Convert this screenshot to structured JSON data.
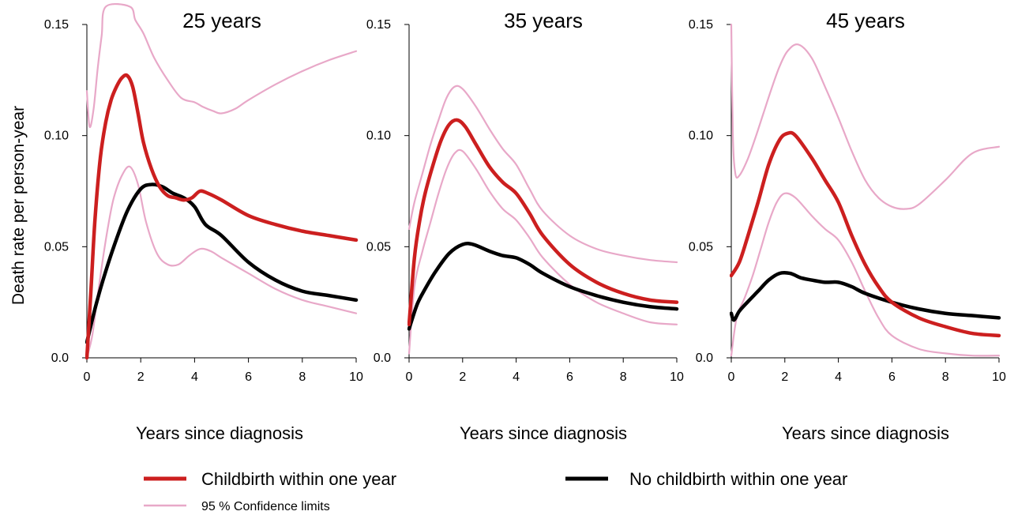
{
  "colors": {
    "childbirth": "#cc1f1f",
    "no_childbirth": "#000000",
    "confidence": "#e8a8c8"
  },
  "chart_data": [
    {
      "type": "line",
      "title": "25 years",
      "xlabel": "Years since diagnosis",
      "ylabel": "Death rate per person-year",
      "xlim": [
        0,
        10
      ],
      "ylim": [
        0,
        0.15
      ],
      "xticks": [
        0,
        2,
        4,
        6,
        8,
        10
      ],
      "yticks": [
        0.0,
        0.05,
        0.1,
        0.15
      ],
      "ytick_labels": [
        "0.0",
        "0.05",
        "0.10",
        "0.15"
      ],
      "series": [
        {
          "name": "Childbirth within one year",
          "role": "childbirth",
          "x": [
            0,
            0.15,
            0.3,
            0.5,
            0.7,
            0.9,
            1.1,
            1.3,
            1.5,
            1.7,
            1.9,
            2.1,
            2.4,
            2.7,
            3.0,
            3.3,
            3.6,
            3.9,
            4.2,
            4.5,
            5,
            6,
            7,
            8,
            9,
            10
          ],
          "y": [
            0.0,
            0.03,
            0.062,
            0.09,
            0.106,
            0.116,
            0.122,
            0.126,
            0.127,
            0.122,
            0.11,
            0.097,
            0.085,
            0.077,
            0.073,
            0.072,
            0.071,
            0.072,
            0.075,
            0.074,
            0.071,
            0.064,
            0.06,
            0.057,
            0.055,
            0.053
          ]
        },
        {
          "name": "No childbirth within one year",
          "role": "no_childbirth",
          "x": [
            0,
            0.3,
            0.6,
            1.0,
            1.5,
            2.0,
            2.4,
            2.8,
            3.2,
            3.6,
            4.0,
            4.4,
            5,
            6,
            7,
            8,
            9,
            10
          ],
          "y": [
            0.007,
            0.022,
            0.035,
            0.05,
            0.066,
            0.076,
            0.078,
            0.077,
            0.074,
            0.072,
            0.068,
            0.06,
            0.055,
            0.043,
            0.035,
            0.03,
            0.028,
            0.026
          ]
        },
        {
          "name": "95 % Confidence limits",
          "role": "ci_lower",
          "x": [
            0,
            0.2,
            0.4,
            0.6,
            0.8,
            1.0,
            1.3,
            1.6,
            1.9,
            2.2,
            2.6,
            3.0,
            3.4,
            3.8,
            4.2,
            4.6,
            5,
            6,
            7,
            8,
            9,
            10
          ],
          "y": [
            0.0,
            0.01,
            0.028,
            0.045,
            0.06,
            0.072,
            0.082,
            0.086,
            0.078,
            0.061,
            0.047,
            0.042,
            0.042,
            0.046,
            0.049,
            0.048,
            0.045,
            0.038,
            0.031,
            0.026,
            0.023,
            0.02
          ]
        },
        {
          "name": "95 % Confidence limits",
          "role": "ci_upper",
          "x": [
            0,
            0.1,
            0.25,
            0.4,
            0.55,
            0.7,
            1.6,
            1.8,
            2.1,
            2.5,
            3.0,
            3.5,
            4.0,
            4.3,
            4.7,
            5.0,
            5.5,
            6,
            7,
            8,
            9,
            10
          ],
          "y": [
            0.12,
            0.104,
            0.112,
            0.13,
            0.145,
            0.158,
            0.158,
            0.152,
            0.146,
            0.135,
            0.125,
            0.117,
            0.115,
            0.113,
            0.111,
            0.11,
            0.112,
            0.116,
            0.123,
            0.129,
            0.134,
            0.138
          ]
        }
      ]
    },
    {
      "type": "line",
      "title": "35 years",
      "xlabel": "Years since diagnosis",
      "xlim": [
        0,
        10
      ],
      "ylim": [
        0,
        0.15
      ],
      "xticks": [
        0,
        2,
        4,
        6,
        8,
        10
      ],
      "yticks": [
        0.0,
        0.05,
        0.1,
        0.15
      ],
      "ytick_labels": [
        "0.0",
        "0.05",
        "0.10",
        "0.15"
      ],
      "series": [
        {
          "name": "Childbirth within one year",
          "role": "childbirth",
          "x": [
            0,
            0.2,
            0.4,
            0.6,
            0.9,
            1.2,
            1.5,
            1.8,
            2.1,
            2.5,
            3.0,
            3.5,
            4.0,
            4.5,
            5,
            6,
            7,
            8,
            9,
            10
          ],
          "y": [
            0.015,
            0.045,
            0.062,
            0.074,
            0.087,
            0.098,
            0.105,
            0.107,
            0.104,
            0.096,
            0.086,
            0.079,
            0.074,
            0.065,
            0.055,
            0.042,
            0.034,
            0.029,
            0.026,
            0.025
          ]
        },
        {
          "name": "No childbirth within one year",
          "role": "no_childbirth",
          "x": [
            0,
            0.3,
            0.6,
            1.0,
            1.5,
            2.0,
            2.4,
            3.0,
            3.5,
            4.0,
            4.5,
            5,
            6,
            7,
            8,
            9,
            10
          ],
          "y": [
            0.013,
            0.024,
            0.031,
            0.039,
            0.047,
            0.051,
            0.051,
            0.048,
            0.046,
            0.045,
            0.042,
            0.038,
            0.032,
            0.028,
            0.025,
            0.023,
            0.022
          ]
        },
        {
          "name": "95 % Confidence limits",
          "role": "ci_lower",
          "x": [
            0,
            0.2,
            0.5,
            0.8,
            1.1,
            1.4,
            1.7,
            2.0,
            2.5,
            3.0,
            3.5,
            4.0,
            4.5,
            5,
            6,
            7,
            8,
            9,
            10
          ],
          "y": [
            0.002,
            0.032,
            0.048,
            0.061,
            0.074,
            0.085,
            0.092,
            0.093,
            0.085,
            0.075,
            0.067,
            0.062,
            0.054,
            0.045,
            0.033,
            0.025,
            0.02,
            0.016,
            0.015
          ]
        },
        {
          "name": "95 % Confidence limits",
          "role": "ci_upper",
          "x": [
            0,
            0.2,
            0.5,
            0.8,
            1.1,
            1.4,
            1.7,
            2.0,
            2.5,
            3.0,
            3.5,
            4.0,
            4.5,
            5,
            6,
            7,
            8,
            9,
            10
          ],
          "y": [
            0.058,
            0.07,
            0.083,
            0.096,
            0.107,
            0.117,
            0.122,
            0.121,
            0.113,
            0.103,
            0.094,
            0.087,
            0.076,
            0.066,
            0.055,
            0.049,
            0.046,
            0.044,
            0.043
          ]
        }
      ]
    },
    {
      "type": "line",
      "title": "45 years",
      "xlabel": "Years since diagnosis",
      "xlim": [
        0,
        10
      ],
      "ylim": [
        0,
        0.15
      ],
      "xticks": [
        0,
        2,
        4,
        6,
        8,
        10
      ],
      "yticks": [
        0.0,
        0.05,
        0.1,
        0.15
      ],
      "ytick_labels": [
        "0.0",
        "0.05",
        "0.10",
        "0.15"
      ],
      "series": [
        {
          "name": "Childbirth within one year",
          "role": "childbirth",
          "x": [
            0,
            0.3,
            0.6,
            1.0,
            1.4,
            1.8,
            2.1,
            2.4,
            3.0,
            3.5,
            4.0,
            4.5,
            5,
            5.5,
            6,
            7,
            8,
            9,
            10
          ],
          "y": [
            0.037,
            0.043,
            0.054,
            0.07,
            0.087,
            0.098,
            0.101,
            0.1,
            0.09,
            0.08,
            0.07,
            0.055,
            0.042,
            0.032,
            0.025,
            0.018,
            0.014,
            0.011,
            0.01
          ]
        },
        {
          "name": "No childbirth within one year",
          "role": "no_childbirth",
          "x": [
            0,
            0.1,
            0.3,
            0.6,
            1.0,
            1.4,
            1.8,
            2.2,
            2.6,
            3.0,
            3.5,
            4.0,
            4.5,
            5,
            6,
            7,
            8,
            9,
            10
          ],
          "y": [
            0.02,
            0.017,
            0.021,
            0.025,
            0.03,
            0.035,
            0.038,
            0.038,
            0.036,
            0.035,
            0.034,
            0.034,
            0.032,
            0.029,
            0.025,
            0.022,
            0.02,
            0.019,
            0.018
          ]
        },
        {
          "name": "95 % Confidence limits",
          "role": "ci_lower",
          "x": [
            0,
            0.2,
            0.5,
            0.8,
            1.1,
            1.4,
            1.7,
            2.0,
            2.4,
            3.0,
            3.5,
            4.0,
            4.5,
            5,
            5.5,
            6,
            7,
            8,
            9,
            10
          ],
          "y": [
            0.001,
            0.018,
            0.027,
            0.037,
            0.049,
            0.061,
            0.07,
            0.074,
            0.072,
            0.064,
            0.058,
            0.053,
            0.043,
            0.03,
            0.018,
            0.01,
            0.004,
            0.002,
            0.001,
            0.001
          ]
        },
        {
          "name": "95 % Confidence limits",
          "role": "ci_upper",
          "x": [
            0,
            0.06,
            0.15,
            0.3,
            0.6,
            0.9,
            1.2,
            1.5,
            1.8,
            2.1,
            2.5,
            3.0,
            3.5,
            4.0,
            4.5,
            5,
            5.5,
            6,
            6.5,
            7,
            8,
            9,
            10
          ],
          "y": [
            0.15,
            0.1,
            0.083,
            0.082,
            0.089,
            0.099,
            0.11,
            0.121,
            0.131,
            0.138,
            0.141,
            0.135,
            0.122,
            0.108,
            0.093,
            0.08,
            0.072,
            0.068,
            0.067,
            0.069,
            0.08,
            0.092,
            0.095
          ]
        }
      ]
    }
  ],
  "legend": {
    "items": [
      {
        "label": "Childbirth within one year",
        "role": "childbirth"
      },
      {
        "label": "No childbirth within one year",
        "role": "no_childbirth"
      },
      {
        "label": "95 % Confidence limits",
        "role": "confidence"
      }
    ]
  }
}
